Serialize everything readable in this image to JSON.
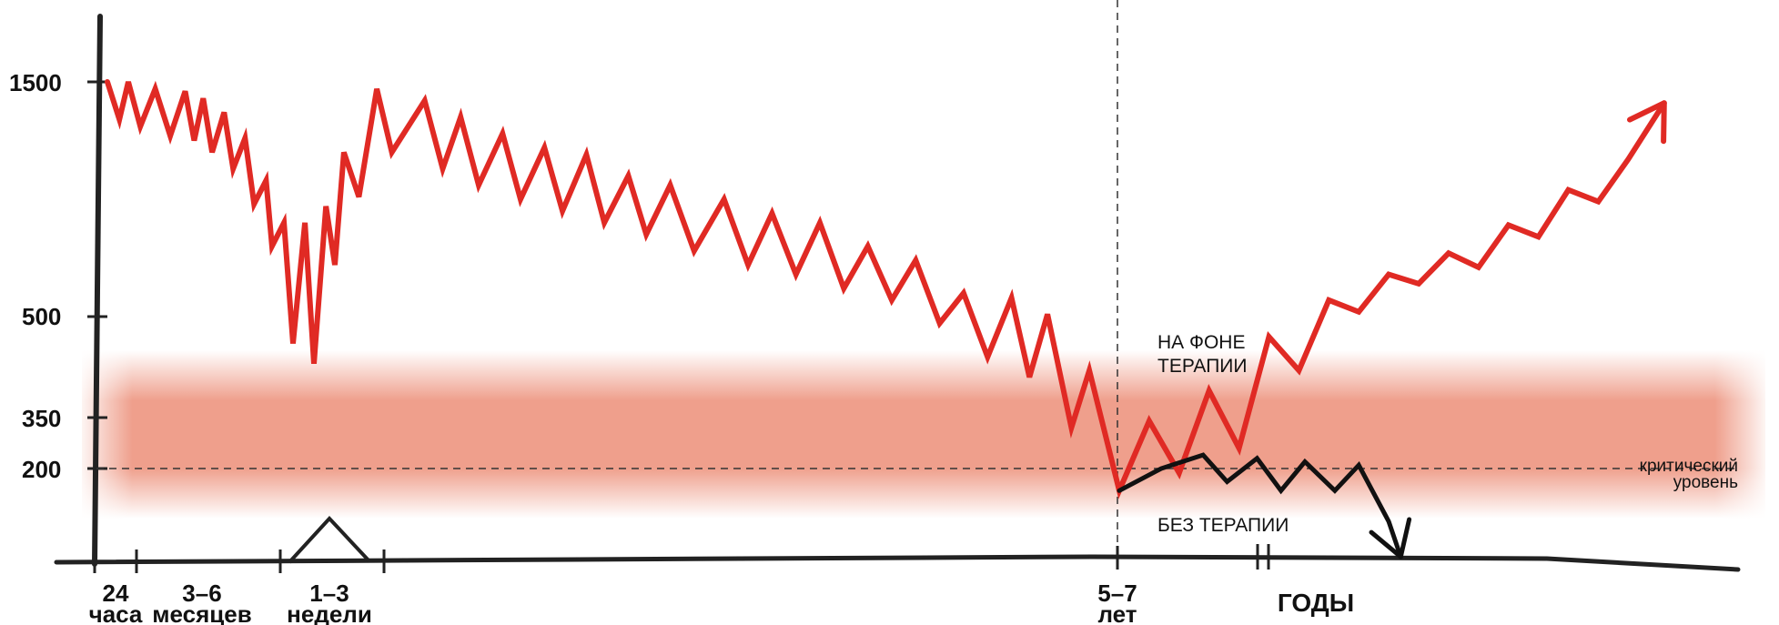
{
  "chart_data": {
    "type": "line",
    "title": "",
    "y_ticks": [
      {
        "label": "1500",
        "value": 1500
      },
      {
        "label": "500",
        "value": 500
      },
      {
        "label": "350",
        "value": 350
      },
      {
        "label": "200",
        "value": 200
      }
    ],
    "x_ticks": [
      {
        "label_top": "24",
        "label_bottom": "часа"
      },
      {
        "label_top": "3–6",
        "label_bottom": "месяцев"
      },
      {
        "label_top": "1–3",
        "label_bottom": "недели"
      },
      {
        "label_top": "5–7",
        "label_bottom": "лет"
      }
    ],
    "x_axis_unit": "ГОДЫ",
    "critical_level": {
      "value": 200,
      "label_line1": "критический",
      "label_line2": "уровень"
    },
    "danger_band": {
      "from": 0,
      "to": 350,
      "color": "#ee9a86"
    },
    "annotations": {
      "with_therapy_line1": "НА ФОНЕ",
      "with_therapy_line2": "ТЕРАПИИ",
      "without_therapy": "БЕЗ ТЕРАПИИ"
    },
    "series": [
      {
        "color": "#e02a24",
        "note": "CD4 count zigzag: acute drop, partial recovery, slow decline to ~150 at 5–7 years, then rising with therapy",
        "points": [
          [
            0,
            1500
          ],
          [
            0.2,
            1340
          ],
          [
            0.35,
            1500
          ],
          [
            0.55,
            1310
          ],
          [
            0.8,
            1470
          ],
          [
            1.05,
            1270
          ],
          [
            1.3,
            1460
          ],
          [
            1.45,
            1250
          ],
          [
            1.6,
            1430
          ],
          [
            1.75,
            1200
          ],
          [
            1.95,
            1370
          ],
          [
            2.1,
            1130
          ],
          [
            2.3,
            1260
          ],
          [
            2.45,
            980
          ],
          [
            2.65,
            1080
          ],
          [
            2.75,
            800
          ],
          [
            2.95,
            900
          ],
          [
            3.1,
            460
          ],
          [
            3.3,
            900
          ],
          [
            3.45,
            430
          ],
          [
            3.65,
            970
          ],
          [
            3.8,
            720
          ],
          [
            3.95,
            1200
          ],
          [
            4.2,
            1010
          ],
          [
            4.5,
            1470
          ],
          [
            4.75,
            1200
          ],
          [
            5.3,
            1420
          ],
          [
            5.6,
            1130
          ],
          [
            5.9,
            1350
          ],
          [
            6.2,
            1060
          ],
          [
            6.6,
            1280
          ],
          [
            6.9,
            1000
          ],
          [
            7.3,
            1220
          ],
          [
            7.6,
            950
          ],
          [
            8.0,
            1190
          ],
          [
            8.3,
            900
          ],
          [
            8.7,
            1100
          ],
          [
            9.0,
            850
          ],
          [
            9.4,
            1060
          ],
          [
            9.8,
            780
          ],
          [
            10.3,
            1000
          ],
          [
            10.7,
            720
          ],
          [
            11.1,
            940
          ],
          [
            11.5,
            680
          ],
          [
            11.9,
            900
          ],
          [
            12.3,
            620
          ],
          [
            12.7,
            800
          ],
          [
            13.1,
            570
          ],
          [
            13.5,
            740
          ],
          [
            13.9,
            490
          ],
          [
            14.3,
            600
          ],
          [
            14.7,
            440
          ],
          [
            15.1,
            580
          ],
          [
            15.4,
            410
          ],
          [
            15.7,
            510
          ],
          [
            16.1,
            320
          ],
          [
            16.4,
            420
          ],
          [
            16.9,
            150
          ],
          [
            17.4,
            340
          ],
          [
            17.9,
            190
          ],
          [
            18.4,
            390
          ],
          [
            18.9,
            260
          ],
          [
            19.4,
            470
          ],
          [
            19.9,
            420
          ],
          [
            20.4,
            570
          ],
          [
            20.9,
            520
          ],
          [
            21.4,
            680
          ],
          [
            21.9,
            640
          ],
          [
            22.4,
            770
          ],
          [
            22.9,
            710
          ],
          [
            23.4,
            890
          ],
          [
            23.9,
            840
          ],
          [
            24.4,
            1040
          ],
          [
            24.9,
            990
          ],
          [
            25.4,
            1170
          ],
          [
            26.0,
            1410
          ]
        ]
      },
      {
        "color": "#111111",
        "note": "without therapy",
        "points": [
          [
            16.9,
            150
          ],
          [
            17.6,
            200
          ],
          [
            18.3,
            240
          ],
          [
            18.7,
            170
          ],
          [
            19.2,
            230
          ],
          [
            19.6,
            150
          ],
          [
            20.0,
            220
          ],
          [
            20.5,
            150
          ],
          [
            20.9,
            210
          ],
          [
            21.4,
            80
          ],
          [
            21.6,
            0
          ]
        ]
      }
    ]
  }
}
